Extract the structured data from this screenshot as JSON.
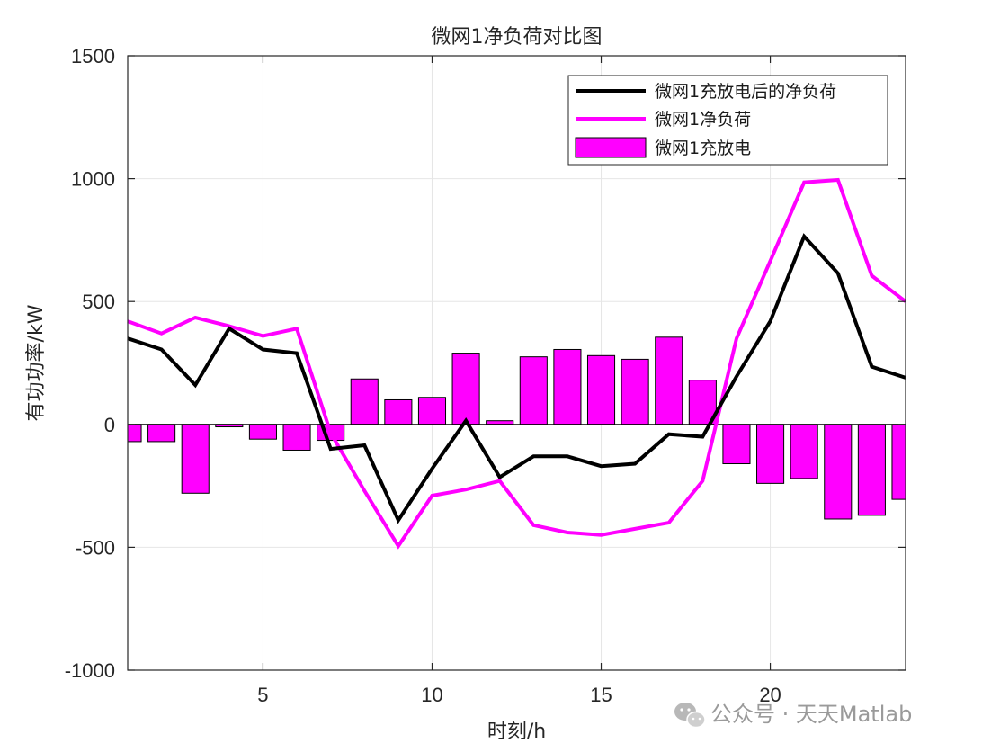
{
  "chart_data": {
    "type": "bar+line",
    "title": "微网1净负荷对比图",
    "xlabel": "时刻/h",
    "ylabel": "有功功率/kW",
    "xlim": [
      1,
      24
    ],
    "ylim": [
      -1000,
      1500
    ],
    "xticks": [
      5,
      10,
      15,
      20
    ],
    "yticks": [
      -1000,
      -500,
      0,
      500,
      1000,
      1500
    ],
    "grid": true,
    "legend_position": "top-right",
    "x": [
      1,
      2,
      3,
      4,
      5,
      6,
      7,
      8,
      9,
      10,
      11,
      12,
      13,
      14,
      15,
      16,
      17,
      18,
      19,
      20,
      21,
      22,
      23,
      24
    ],
    "series": [
      {
        "name": "微网1充放电后的净负荷",
        "kind": "line",
        "color": "#000000",
        "values": [
          350,
          305,
          160,
          390,
          305,
          290,
          -100,
          -85,
          -390,
          -180,
          15,
          -215,
          -130,
          -130,
          -170,
          -160,
          -40,
          -50,
          195,
          420,
          765,
          615,
          235,
          190
        ]
      },
      {
        "name": "微网1净负荷",
        "kind": "line",
        "color": "#ff00ff",
        "values": [
          420,
          370,
          435,
          400,
          360,
          390,
          -35,
          -270,
          -495,
          -290,
          -265,
          -230,
          -410,
          -440,
          -450,
          -425,
          -400,
          -230,
          350,
          665,
          985,
          995,
          605,
          500
        ]
      },
      {
        "name": "微网1充放电",
        "kind": "bar",
        "color": "#ff00ff",
        "values": [
          -70,
          -70,
          -280,
          -10,
          -60,
          -105,
          -65,
          185,
          100,
          110,
          290,
          15,
          275,
          305,
          280,
          265,
          355,
          180,
          -160,
          -240,
          -220,
          -385,
          -370,
          -305
        ]
      }
    ]
  },
  "watermark": {
    "text": "公众号 · 天天Matlab",
    "icon": "wechat-icon"
  }
}
